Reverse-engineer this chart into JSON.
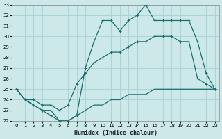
{
  "xlabel": "Humidex (Indice chaleur)",
  "background_color": "#cce8e8",
  "grid_color": "#add4d4",
  "line_color": "#1a6e6e",
  "x_values": [
    0,
    1,
    2,
    3,
    4,
    5,
    6,
    7,
    8,
    9,
    10,
    11,
    12,
    13,
    14,
    15,
    16,
    17,
    18,
    19,
    20,
    21,
    22,
    23
  ],
  "line1_top": [
    25.0,
    24.0,
    23.5,
    23.0,
    22.5,
    22.0,
    22.0,
    22.5,
    27.0,
    29.5,
    31.5,
    31.5,
    30.5,
    31.5,
    32.0,
    33.0,
    31.5,
    31.5,
    31.5,
    31.5,
    31.5,
    29.5,
    26.5,
    25.0
  ],
  "line2_mid": [
    25.0,
    24.0,
    24.0,
    23.5,
    23.5,
    23.0,
    23.5,
    25.5,
    26.5,
    27.5,
    28.0,
    28.5,
    28.5,
    29.0,
    29.5,
    29.5,
    30.0,
    30.0,
    30.0,
    29.5,
    29.5,
    26.0,
    25.5,
    25.0
  ],
  "line3_bot": [
    25.0,
    24.0,
    23.5,
    23.0,
    23.0,
    22.0,
    22.0,
    22.5,
    23.0,
    23.5,
    23.5,
    24.0,
    24.0,
    24.5,
    24.5,
    24.5,
    25.0,
    25.0,
    25.0,
    25.0,
    25.0,
    25.0,
    25.0,
    25.0
  ],
  "ylim": [
    22,
    33
  ],
  "xlim": [
    -0.5,
    23.5
  ],
  "yticks": [
    22,
    23,
    24,
    25,
    26,
    27,
    28,
    29,
    30,
    31,
    32,
    33
  ],
  "xticks": [
    0,
    1,
    2,
    3,
    4,
    5,
    6,
    7,
    8,
    9,
    10,
    11,
    12,
    13,
    14,
    15,
    16,
    17,
    18,
    19,
    20,
    21,
    22,
    23
  ]
}
